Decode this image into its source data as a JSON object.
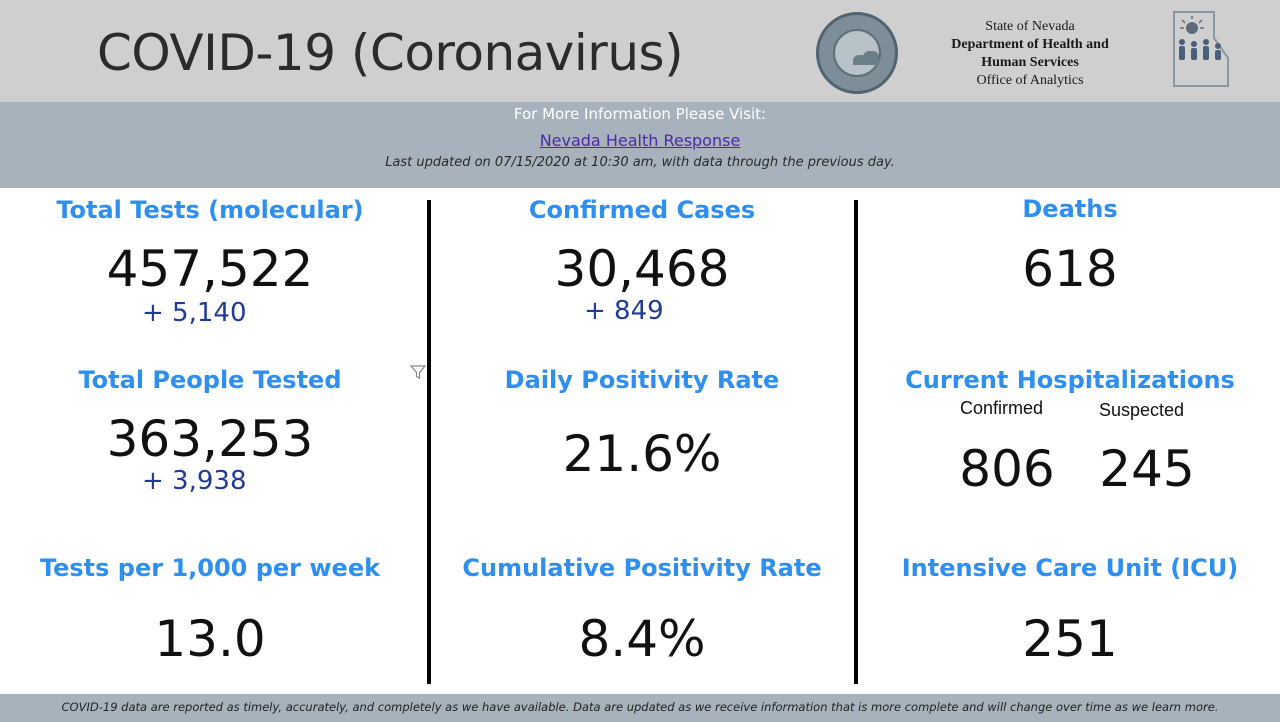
{
  "header": {
    "title": "COVID-19 (Coronavirus)",
    "agency_line1": "State of Nevada",
    "agency_line2": "Department of Health and",
    "agency_line3": "Human Services",
    "agency_line4": "Office of Analytics"
  },
  "info": {
    "visit_text": "For More Information Please Visit:",
    "link_text": "Nevada Health Response",
    "updated_text": "Last updated on 07/15/2020 at 10:30 am, with data through the previous day."
  },
  "metrics": {
    "total_tests": {
      "label": "Total Tests (molecular)",
      "value": "457,522",
      "delta": "+ 5,140"
    },
    "confirmed_cases": {
      "label": "Confirmed Cases",
      "value": "30,468",
      "delta": "+ 849"
    },
    "deaths": {
      "label": "Deaths",
      "value": "618"
    },
    "people_tested": {
      "label": "Total People Tested",
      "value": "363,253",
      "delta": "+ 3,938"
    },
    "daily_positivity": {
      "label": "Daily Positivity Rate",
      "value": "21.6%"
    },
    "hospitalizations": {
      "label": "Current Hospitalizations",
      "confirmed_label": "Confirmed",
      "confirmed_value": "806",
      "suspected_label": "Suspected",
      "suspected_value": "245"
    },
    "tests_per_1000": {
      "label": "Tests per 1,000 per week",
      "value": "13.0"
    },
    "cumulative_positivity": {
      "label": "Cumulative Positivity Rate",
      "value": "8.4%"
    },
    "icu": {
      "label": "Intensive Care Unit (ICU)",
      "value": "251"
    }
  },
  "footer": {
    "text": "COVID-19 data are reported as timely, accurately, and completely as we have available.  Data are updated as we receive information that is more complete and will change over time as we learn more."
  },
  "colors": {
    "heading": "#2f8ff0",
    "delta": "#1f3b9a",
    "header_bg": "#cfcfcf",
    "info_bg": "#a7b2bd",
    "link": "#4b2aa8"
  },
  "icons": [
    "nevada-state-seal-icon",
    "dhhs-logo-icon",
    "filter-icon"
  ]
}
